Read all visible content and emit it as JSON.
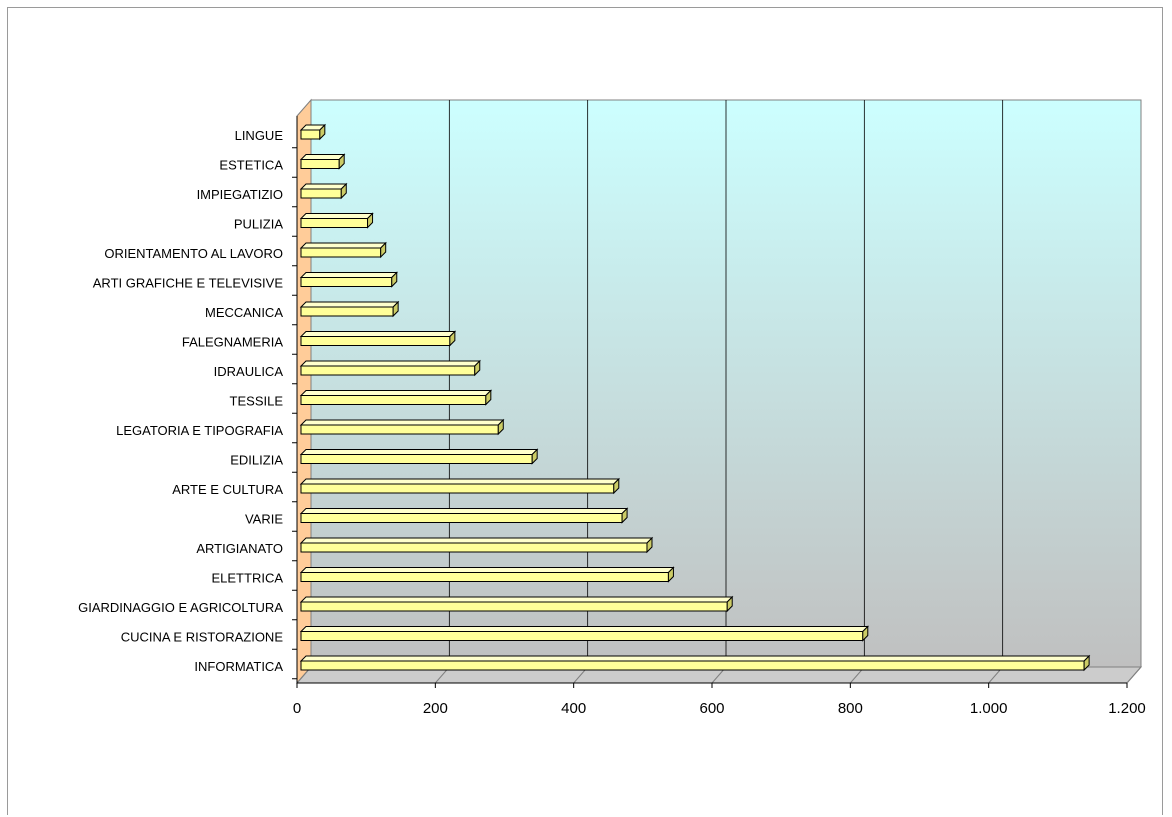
{
  "chart_data": {
    "type": "bar",
    "orientation": "horizontal",
    "categories": [
      "INFORMATICA",
      "CUCINA E RISTORAZIONE",
      "GIARDINAGGIO E AGRICOLTURA",
      "ELETTRICA",
      "ARTIGIANATO",
      "VARIE",
      "ARTE E CULTURA",
      "EDILIZIA",
      "LEGATORIA E TIPOGRAFIA",
      "TESSILE",
      "IDRAULICA",
      "FALEGNAMERIA",
      "MECCANICA",
      "ARTI GRAFICHE E TELEVISIVE",
      "ORIENTAMENTO AL LAVORO",
      "PULIZIA",
      "IMPIEGATIZIO",
      "ESTETICA",
      "LINGUE"
    ],
    "values": [
      1138,
      818,
      622,
      537,
      506,
      470,
      458,
      340,
      291,
      273,
      257,
      221,
      139,
      137,
      121,
      102,
      64,
      61,
      33
    ],
    "xlim": [
      0,
      1200
    ],
    "xticks": [
      "0",
      "200",
      "400",
      "600",
      "800",
      "1.000",
      "1.200"
    ],
    "xtick_values": [
      0,
      200,
      400,
      600,
      800,
      1000,
      1200
    ],
    "grid": "vertical",
    "legend": "none",
    "colors": {
      "bar_front": "#ffff99",
      "bar_top": "#ffffcc",
      "bar_side": "#cccc66",
      "bar_stroke": "#000000",
      "wall_top": "#ccffff",
      "wall_bottom": "#c0c0c0",
      "side_wall": "#ffcc99",
      "floor": "#cccccc",
      "gridline": "#000000"
    }
  }
}
